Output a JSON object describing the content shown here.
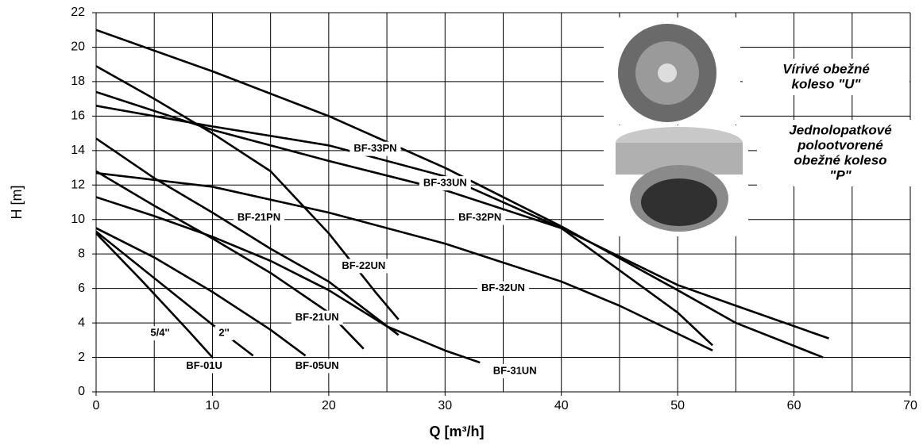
{
  "chart_data": {
    "type": "line",
    "xlabel": "Q [m³/h]",
    "ylabel": "H [m]",
    "xlim": [
      0,
      70
    ],
    "ylim": [
      0,
      22
    ],
    "xticks": [
      0,
      10,
      20,
      30,
      40,
      50,
      60,
      70
    ],
    "xminor_grid": [
      5,
      15,
      25,
      35,
      45,
      55,
      65
    ],
    "yticks": [
      0,
      2,
      4,
      6,
      8,
      10,
      12,
      14,
      16,
      18,
      20,
      22
    ],
    "grid": true,
    "series": [
      {
        "name": "BF-33PN",
        "color": "#000000",
        "label_at": [
          24,
          14.1
        ],
        "x": [
          0,
          10,
          20,
          30,
          40,
          50,
          55,
          62.5
        ],
        "values": [
          21,
          18.6,
          16,
          13,
          9.6,
          5.9,
          4,
          2
        ]
      },
      {
        "name": "BF-33UN",
        "color": "#000000",
        "label_at": [
          30,
          12.1
        ],
        "x": [
          0,
          10,
          20,
          30,
          40,
          50,
          55,
          63
        ],
        "values": [
          17.4,
          15.2,
          13.4,
          11.7,
          9.5,
          6.2,
          5,
          3.1
        ]
      },
      {
        "name": "BF-32PN",
        "color": "#000000",
        "label_at": [
          33,
          10.1
        ],
        "x": [
          0,
          10,
          20,
          30,
          40,
          50,
          53
        ],
        "values": [
          16.6,
          15.4,
          14.3,
          12.5,
          9.5,
          4.6,
          2.7
        ]
      },
      {
        "name": "BF-32UN",
        "color": "#000000",
        "label_at": [
          35,
          6
        ],
        "x": [
          0,
          10,
          20,
          30,
          40,
          45,
          53
        ],
        "values": [
          12.7,
          11.9,
          10.4,
          8.6,
          6.4,
          5,
          2.4
        ]
      },
      {
        "name": "BF-22UN",
        "color": "#000000",
        "label_at": [
          23,
          7.3
        ],
        "x": [
          0,
          5,
          10,
          15,
          20,
          24,
          26
        ],
        "values": [
          18.9,
          17,
          15,
          12.8,
          9.2,
          5.8,
          4.2
        ]
      },
      {
        "name": "BF-21PN",
        "color": "#000000",
        "label_at": [
          14,
          10.1
        ],
        "x": [
          0,
          5,
          10,
          15,
          20,
          26
        ],
        "values": [
          14.7,
          12.4,
          10.4,
          8.3,
          6.4,
          3.3
        ]
      },
      {
        "name": "BF-31UN",
        "color": "#000000",
        "label_at": [
          36,
          1.2
        ],
        "x": [
          0,
          5,
          10,
          15,
          20,
          25,
          30,
          33
        ],
        "values": [
          11.3,
          10.2,
          9,
          7.6,
          5.9,
          3.8,
          2.4,
          1.7
        ]
      },
      {
        "name": "BF-21UN",
        "color": "#000000",
        "label_at": [
          19,
          4.3
        ],
        "x": [
          0,
          5,
          10,
          15,
          20,
          23
        ],
        "values": [
          12.8,
          10.8,
          8.9,
          6.9,
          4.6,
          2.5
        ]
      },
      {
        "name": "BF-05UN",
        "color": "#000000",
        "label_at": [
          19,
          1.5
        ],
        "x": [
          0,
          5,
          10,
          15,
          18
        ],
        "values": [
          9.5,
          7.8,
          5.8,
          3.6,
          2.1
        ]
      },
      {
        "name": "2''",
        "color": "#000000",
        "label_at": [
          11,
          3.4
        ],
        "x": [
          0,
          5,
          10,
          13.5
        ],
        "values": [
          9.3,
          6.6,
          3.9,
          2.1
        ]
      },
      {
        "name": "5/4''",
        "color": "#000000",
        "label_at": [
          5.5,
          3.4
        ],
        "x": [
          0,
          4,
          8,
          10
        ],
        "values": [
          9.2,
          6.4,
          3.5,
          2
        ]
      }
    ],
    "annotations": [
      {
        "text": "BF-01U",
        "x": 9.3,
        "y": 1.5
      }
    ],
    "captions": [
      [
        "Vírivé obežné",
        "koleso \"U\""
      ],
      [
        "Jednolopatkové",
        "polootvorené",
        "obežné koleso",
        "\"P\""
      ]
    ]
  }
}
